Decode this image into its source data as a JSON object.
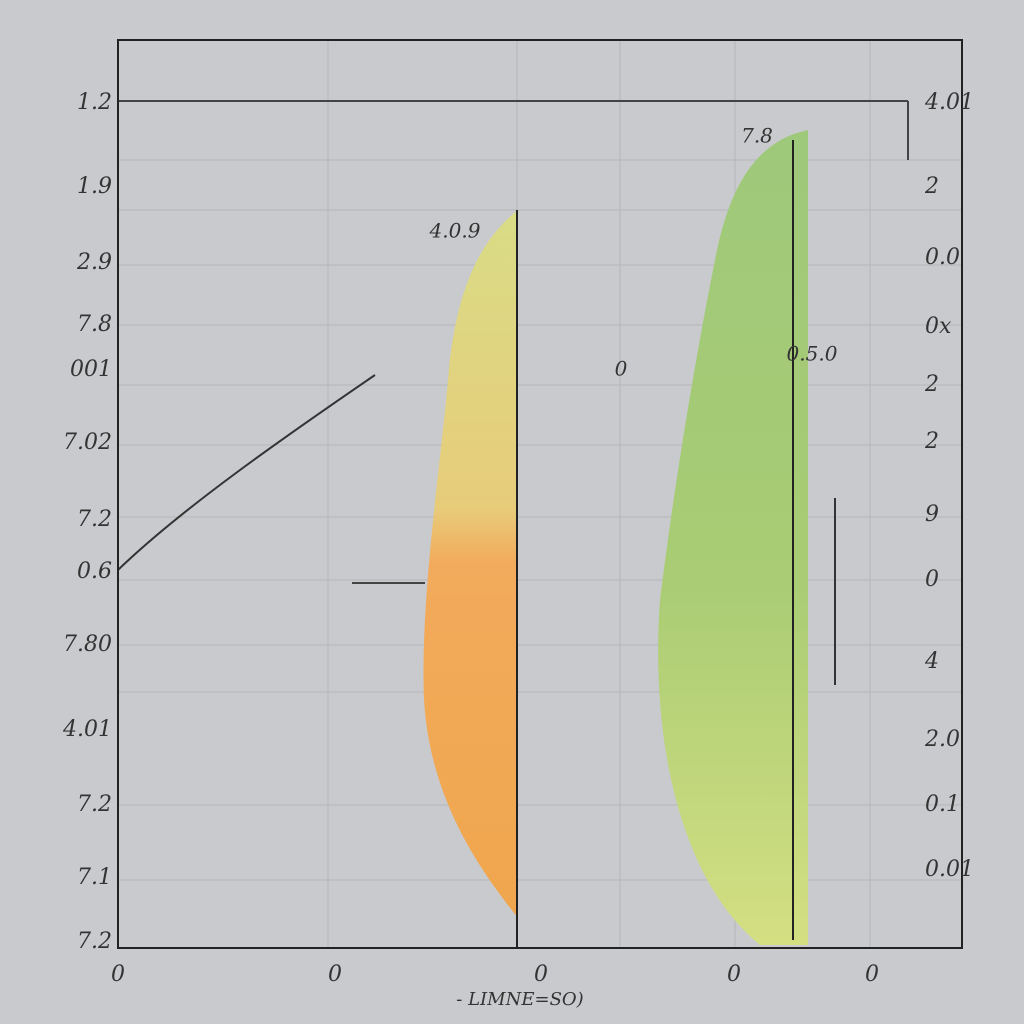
{
  "chart_data": {
    "type": "area",
    "y_labels_left": [
      "1.2",
      "1.9",
      "2.9",
      "7.8",
      "001",
      "7.02",
      "7.2",
      "0.6",
      "7.80",
      "4.01",
      "7.2",
      "7.1",
      "7.2"
    ],
    "y_labels_right": [
      "4.01",
      "2",
      "0.0",
      "0x",
      "2",
      "2",
      "9",
      "0",
      "4",
      "2.0",
      "0.1",
      "0.01"
    ],
    "x_labels": [
      "0",
      "0",
      "0",
      "0",
      "0"
    ],
    "x_axis_label": "- LIMNE=SO)",
    "annotations": [
      "4.0.9",
      "7.8",
      "0.5.0",
      "0"
    ]
  }
}
